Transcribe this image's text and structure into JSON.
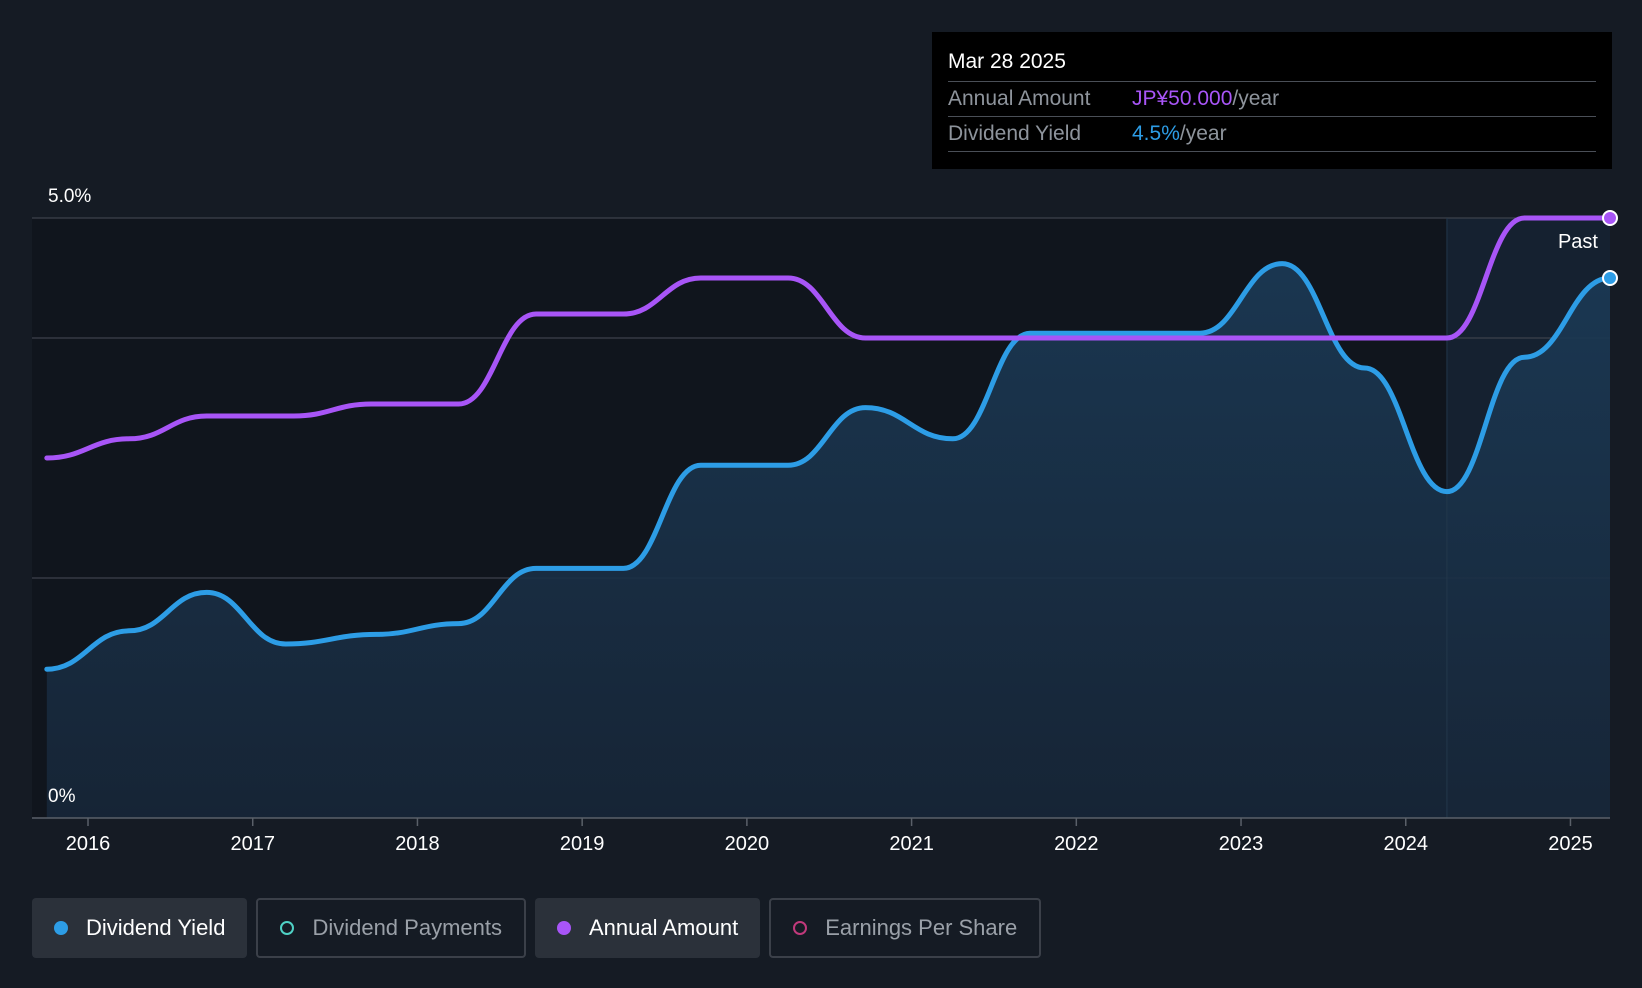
{
  "chart_data": {
    "type": "line",
    "x_unit": "year",
    "xlim": [
      2015.66,
      2025.24
    ],
    "y_left": {
      "min_label": "0%",
      "max_label": "5.0%",
      "ylim": [
        0,
        5.0
      ]
    },
    "gridlines_y": [
      5.0,
      4.0,
      2.0
    ],
    "x_ticks": [
      {
        "value": 2016,
        "label": "2016"
      },
      {
        "value": 2017,
        "label": "2017"
      },
      {
        "value": 2018,
        "label": "2018"
      },
      {
        "value": 2019,
        "label": "2019"
      },
      {
        "value": 2020,
        "label": "2020"
      },
      {
        "value": 2021,
        "label": "2021"
      },
      {
        "value": 2022,
        "label": "2022"
      },
      {
        "value": 2023,
        "label": "2023"
      },
      {
        "value": 2024,
        "label": "2024"
      },
      {
        "value": 2025,
        "label": "2025"
      }
    ],
    "past_region_start": 2024.25,
    "past_label": "Past",
    "series": [
      {
        "name": "Dividend Yield",
        "color": "#2d9de6",
        "area": true,
        "points": [
          [
            2015.75,
            1.24
          ],
          [
            2016.25,
            1.56
          ],
          [
            2016.72,
            1.88
          ],
          [
            2017.2,
            1.45
          ],
          [
            2017.75,
            1.53
          ],
          [
            2018.25,
            1.62
          ],
          [
            2018.72,
            2.08
          ],
          [
            2019.25,
            2.08
          ],
          [
            2019.72,
            2.94
          ],
          [
            2020.25,
            2.94
          ],
          [
            2020.72,
            3.42
          ],
          [
            2021.25,
            3.16
          ],
          [
            2021.72,
            4.04
          ],
          [
            2022.75,
            4.04
          ],
          [
            2023.25,
            4.62
          ],
          [
            2023.75,
            3.75
          ],
          [
            2024.25,
            2.72
          ],
          [
            2024.72,
            3.84
          ],
          [
            2025.24,
            4.5
          ]
        ]
      },
      {
        "name": "Annual Amount",
        "color": "#a855f7",
        "area": false,
        "points": [
          [
            2015.75,
            3.0
          ],
          [
            2016.25,
            3.16
          ],
          [
            2016.72,
            3.35
          ],
          [
            2017.25,
            3.35
          ],
          [
            2017.72,
            3.45
          ],
          [
            2018.25,
            3.45
          ],
          [
            2018.72,
            4.2
          ],
          [
            2019.25,
            4.2
          ],
          [
            2019.72,
            4.5
          ],
          [
            2020.25,
            4.5
          ],
          [
            2020.72,
            4.0
          ],
          [
            2024.25,
            4.0
          ],
          [
            2024.72,
            5.0
          ],
          [
            2025.24,
            5.0
          ]
        ]
      }
    ]
  },
  "tooltip": {
    "date": "Mar 28 2025",
    "rows": [
      {
        "key": "Annual Amount",
        "value": "JP¥50.000",
        "unit": "/year"
      },
      {
        "key": "Dividend Yield",
        "value": "4.5%",
        "unit": "/year"
      }
    ]
  },
  "legend": [
    {
      "label": "Dividend Yield",
      "color": "#2d9de6",
      "active": true
    },
    {
      "label": "Dividend Payments",
      "color": "#4fd1c5",
      "active": false
    },
    {
      "label": "Annual Amount",
      "color": "#a855f7",
      "active": true
    },
    {
      "label": "Earnings Per Share",
      "color": "#c0397b",
      "active": false
    }
  ]
}
